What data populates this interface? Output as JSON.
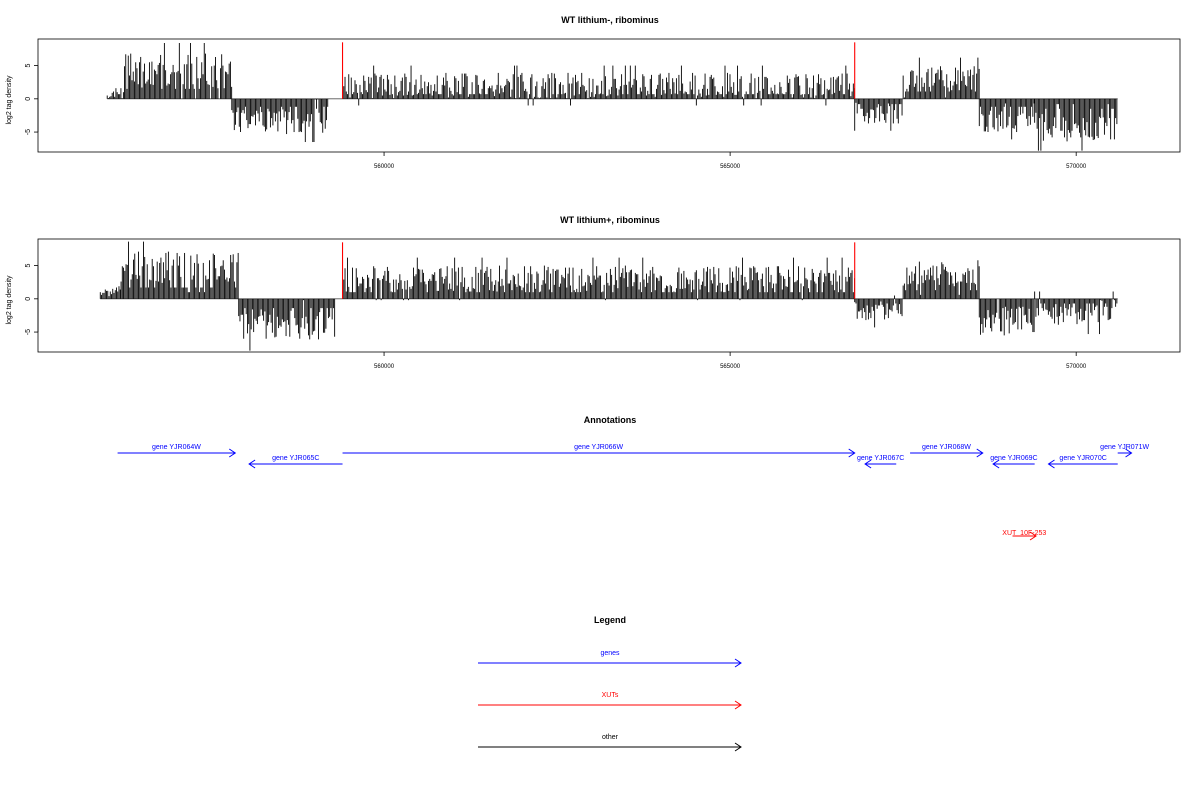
{
  "chart_data": [
    {
      "type": "bar",
      "title": "WT lithium-, ribominus",
      "ylabel": "log2 tag density",
      "xlabel": "",
      "xlim": [
        555000,
        571500
      ],
      "ylim": [
        -8,
        9
      ],
      "y_ticks": [
        "5",
        "0",
        "-5"
      ],
      "y_tick_values": [
        5,
        0,
        -5
      ],
      "x_ticks": [
        "560000",
        "565000",
        "570000"
      ],
      "x_tick_values": [
        560000,
        565000,
        570000
      ],
      "bar_color": "#000000",
      "marker_color": "#ff0000",
      "markers": [
        {
          "x": 559400,
          "value": 8.5
        },
        {
          "x": 566800,
          "value": 8.5
        }
      ],
      "segments": [
        {
          "start": 556000,
          "end": 556250,
          "mean": 0.6,
          "amp": 0.6
        },
        {
          "start": 556250,
          "end": 557800,
          "mean": 4.2,
          "amp": 2.6
        },
        {
          "start": 557800,
          "end": 559200,
          "mean": -3.3,
          "amp": 2.0
        },
        {
          "start": 559400,
          "end": 566800,
          "mean": 2.0,
          "amp": 1.9
        },
        {
          "start": 566800,
          "end": 567500,
          "mean": -2.2,
          "amp": 1.6
        },
        {
          "start": 567500,
          "end": 568600,
          "mean": 3.2,
          "amp": 1.9
        },
        {
          "start": 568600,
          "end": 569400,
          "mean": -3.4,
          "amp": 1.7
        },
        {
          "start": 569400,
          "end": 570600,
          "mean": -4.3,
          "amp": 2.2
        }
      ],
      "values": []
    },
    {
      "type": "bar",
      "title": "WT lithium+, ribominus",
      "ylabel": "log2 tag density",
      "xlabel": "",
      "xlim": [
        555000,
        571500
      ],
      "ylim": [
        -8,
        9
      ],
      "y_ticks": [
        "5",
        "0",
        "-5"
      ],
      "y_tick_values": [
        5,
        0,
        -5
      ],
      "x_ticks": [
        "560000",
        "565000",
        "570000"
      ],
      "x_tick_values": [
        560000,
        565000,
        570000
      ],
      "bar_color": "#000000",
      "marker_color": "#ff0000",
      "markers": [
        {
          "x": 559400,
          "value": 8.5
        },
        {
          "x": 566800,
          "value": 8.5
        }
      ],
      "segments": [
        {
          "start": 555900,
          "end": 556200,
          "mean": 1.2,
          "amp": 0.8
        },
        {
          "start": 556200,
          "end": 557900,
          "mean": 4.8,
          "amp": 2.4
        },
        {
          "start": 557900,
          "end": 559300,
          "mean": -4.0,
          "amp": 2.4
        },
        {
          "start": 559400,
          "end": 566800,
          "mean": 3.0,
          "amp": 2.0
        },
        {
          "start": 566800,
          "end": 567500,
          "mean": -1.9,
          "amp": 1.5
        },
        {
          "start": 567500,
          "end": 568600,
          "mean": 3.8,
          "amp": 2.0
        },
        {
          "start": 568600,
          "end": 569400,
          "mean": -3.5,
          "amp": 2.2
        },
        {
          "start": 569400,
          "end": 570600,
          "mean": -2.1,
          "amp": 2.0
        }
      ],
      "values": []
    }
  ],
  "annotations": {
    "title": "Annotations",
    "genes": [
      {
        "label": "gene YJR064W",
        "start": 556150,
        "end": 557850,
        "strand": "+",
        "row": 0,
        "color": "#0000ff"
      },
      {
        "label": "gene YJR065C",
        "start": 558050,
        "end": 559400,
        "strand": "-",
        "row": 1,
        "color": "#0000ff"
      },
      {
        "label": "gene YJR066W",
        "start": 559400,
        "end": 566800,
        "strand": "+",
        "row": 0,
        "color": "#0000ff"
      },
      {
        "label": "gene YJR067C",
        "start": 566950,
        "end": 567400,
        "strand": "-",
        "row": 1,
        "color": "#0000ff"
      },
      {
        "label": "gene YJR068W",
        "start": 567600,
        "end": 568650,
        "strand": "+",
        "row": 0,
        "color": "#0000ff"
      },
      {
        "label": "gene YJR069C",
        "start": 568800,
        "end": 569400,
        "strand": "-",
        "row": 1,
        "color": "#0000ff"
      },
      {
        "label": "gene YJR070C",
        "start": 569600,
        "end": 570600,
        "strand": "-",
        "row": 1,
        "color": "#0000ff"
      },
      {
        "label": "gene YJR071W",
        "start": 570600,
        "end": 570800,
        "strand": "+",
        "row": 0,
        "color": "#0000ff"
      }
    ],
    "xuts": [
      {
        "label": "XUT_10F-253",
        "start": 569080,
        "end": 569420,
        "strand": "+",
        "color": "#ff0000"
      }
    ]
  },
  "legend": {
    "title": "Legend",
    "items": [
      {
        "label": "genes",
        "color": "#0000ff"
      },
      {
        "label": "XUTs",
        "color": "#ff0000"
      },
      {
        "label": "other",
        "color": "#000000"
      }
    ]
  }
}
